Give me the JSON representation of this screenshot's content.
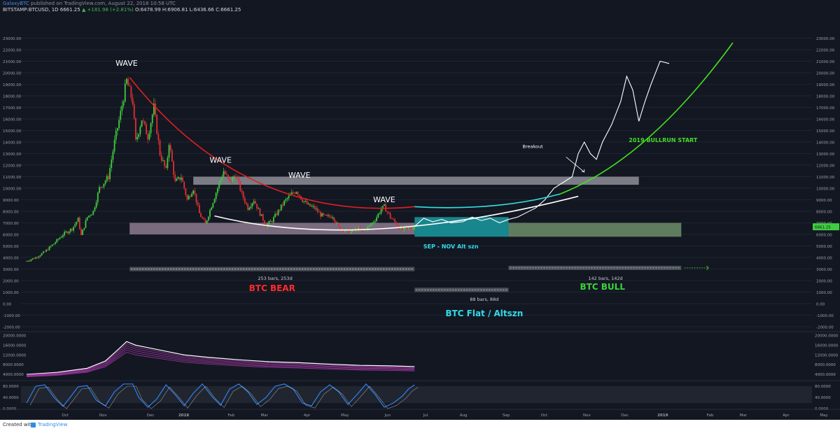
{
  "header": {
    "publisher": "GalaxyBTC",
    "published_text": "published on TradingView.com, August 22, 2018 10:58 UTC",
    "symbol_line": "BITSTAMP:BTCUSD, 1D 6661.25",
    "change_text": "▲ +181.98 (+2.81%)",
    "ohlc_text": "O:6478.99 H:6906.81 L:6436.66 C:6661.25"
  },
  "footer": {
    "created_with": "Created with",
    "brand": "TradingView"
  },
  "colors": {
    "background": "#131722",
    "bull_candle": "#3fcc3f",
    "bear_candle": "#e03030",
    "red_curve": "#e02020",
    "white_curve": "#ffffff",
    "cyan_curve": "#30e0e0",
    "green_curve": "#44dd22",
    "teal_box": "#1a9aa0",
    "green_box": "#6e8e6a",
    "gray_box": "#8e8e96",
    "pink_box": "#8e7a8e",
    "label_red": "#ff2a2a",
    "label_green": "#3bd23b",
    "label_cyan": "#30dbe8"
  },
  "chart_data": {
    "type": "candlestick",
    "xlabels": [
      "Oct",
      "Nov",
      "Dec",
      "2018",
      "Feb",
      "Mar",
      "Apr",
      "May",
      "Jun",
      "Jul",
      "Aug",
      "Sep",
      "Oct",
      "Nov",
      "Dec",
      "2019",
      "Feb",
      "Mar",
      "Apr",
      "May",
      "Jun",
      "Jul"
    ],
    "y_ticks": [
      23000,
      22000,
      21000,
      20000,
      19000,
      18000,
      17000,
      16000,
      15000,
      14000,
      13000,
      12000,
      11000,
      10000,
      9000,
      8000,
      7000,
      6000,
      5000,
      4000,
      3000,
      2000,
      1000,
      0,
      -1000,
      -2000
    ],
    "y_tick_labels": [
      "23000.00",
      "22000.00",
      "21000.00",
      "20000.00",
      "19000.00",
      "18000.00",
      "17000.00",
      "16000.00",
      "15000.00",
      "14000.00",
      "13000.00",
      "12000.00",
      "11000.00",
      "10000.00",
      "9000.00",
      "8000.00",
      "7000.00",
      "6000.00",
      "5000.00",
      "4000.00",
      "3000.00",
      "2000.00",
      "1000.00",
      "0.00",
      "-1000.00",
      "-2000.00"
    ],
    "ylim": [
      -2300,
      24000
    ],
    "last_price_label": "6661.25",
    "price_path": [
      [
        0,
        3700
      ],
      [
        3,
        4000
      ],
      [
        6,
        4500
      ],
      [
        9,
        5200
      ],
      [
        12,
        6000
      ],
      [
        15,
        6500
      ],
      [
        17,
        7300
      ],
      [
        18,
        5900
      ],
      [
        20,
        7500
      ],
      [
        22,
        8000
      ],
      [
        24,
        10000
      ],
      [
        27,
        11000
      ],
      [
        29,
        14000
      ],
      [
        31,
        16500
      ],
      [
        33,
        19300
      ],
      [
        35,
        17500
      ],
      [
        36,
        14000
      ],
      [
        38,
        16000
      ],
      [
        40,
        14500
      ],
      [
        42,
        17000
      ],
      [
        44,
        13000
      ],
      [
        46,
        11500
      ],
      [
        47,
        14000
      ],
      [
        49,
        10500
      ],
      [
        51,
        11000
      ],
      [
        53,
        9000
      ],
      [
        55,
        10000
      ],
      [
        57,
        7800
      ],
      [
        59,
        6900
      ],
      [
        61,
        8500
      ],
      [
        63,
        10000
      ],
      [
        65,
        11500
      ],
      [
        67,
        10500
      ],
      [
        69,
        11200
      ],
      [
        71,
        9500
      ],
      [
        73,
        8300
      ],
      [
        75,
        9000
      ],
      [
        77,
        7800
      ],
      [
        79,
        6800
      ],
      [
        81,
        7200
      ],
      [
        83,
        8000
      ],
      [
        85,
        8800
      ],
      [
        87,
        9400
      ],
      [
        89,
        9800
      ],
      [
        91,
        9000
      ],
      [
        93,
        8500
      ],
      [
        95,
        8300
      ],
      [
        97,
        7700
      ],
      [
        99,
        7500
      ],
      [
        101,
        7600
      ],
      [
        103,
        6600
      ],
      [
        105,
        6400
      ],
      [
        107,
        6200
      ],
      [
        109,
        6500
      ],
      [
        111,
        6300
      ],
      [
        113,
        6700
      ],
      [
        115,
        7300
      ],
      [
        117,
        8200
      ],
      [
        118,
        8400
      ],
      [
        120,
        7500
      ],
      [
        122,
        6900
      ],
      [
        124,
        6400
      ],
      [
        126,
        6500
      ],
      [
        128,
        6661
      ]
    ],
    "projection_path": [
      [
        128,
        6700
      ],
      [
        131,
        7400
      ],
      [
        134,
        7100
      ],
      [
        137,
        7300
      ],
      [
        140,
        7000
      ],
      [
        144,
        7100
      ],
      [
        147,
        7500
      ],
      [
        150,
        7200
      ],
      [
        153,
        7400
      ],
      [
        156,
        7000
      ],
      [
        159,
        7300
      ],
      [
        162,
        7500
      ],
      [
        165,
        7900
      ],
      [
        168,
        8300
      ],
      [
        171,
        9000
      ],
      [
        174,
        10000
      ],
      [
        177,
        10500
      ],
      [
        180,
        11000
      ],
      [
        182,
        13000
      ],
      [
        184,
        14000
      ],
      [
        186,
        13000
      ],
      [
        188,
        12500
      ],
      [
        190,
        14000
      ],
      [
        193,
        15500
      ],
      [
        196,
        17500
      ],
      [
        198,
        19700
      ],
      [
        200,
        18500
      ],
      [
        202,
        15800
      ],
      [
        204,
        17500
      ],
      [
        206,
        19000
      ],
      [
        209,
        21000
      ],
      [
        212,
        20800
      ]
    ],
    "annotations": [
      {
        "id": "wave1",
        "text": "WAVE",
        "bar": 33,
        "price": 20600,
        "color": "#ffffff"
      },
      {
        "id": "wave2",
        "text": "WAVE",
        "bar": 64,
        "price": 12200,
        "color": "#ffffff"
      },
      {
        "id": "wave3",
        "text": "WAVE",
        "bar": 90,
        "price": 10900,
        "color": "#ffffff"
      },
      {
        "id": "wave4",
        "text": "WAVE",
        "bar": 118,
        "price": 8800,
        "color": "#ffffff"
      },
      {
        "id": "sep_nov",
        "text": "SEP - NOV Alt szn",
        "bar": 140,
        "price": 4800,
        "color": "#30dbe8"
      },
      {
        "id": "breakout",
        "text": "Breakout",
        "bar": 167,
        "price": 13500,
        "color": "#ffffff"
      },
      {
        "id": "bullrun",
        "text": "2019 BULLRUN START",
        "bar": 210,
        "price": 14000,
        "color": "#44dd22"
      },
      {
        "id": "bear_range",
        "text": "253 bars, 253d",
        "bar": 82,
        "price": 2050,
        "color": "#cccccc"
      },
      {
        "id": "flat_range",
        "text": "88 bars, 88d",
        "bar": 151,
        "price": 250,
        "color": "#cccccc"
      },
      {
        "id": "bull_range",
        "text": "142 bars, 142d",
        "bar": 191,
        "price": 2050,
        "color": "#cccccc"
      },
      {
        "id": "btc_bear",
        "text": "BTC BEAR",
        "bar": 81,
        "price": 1100,
        "color": "#ff2a2a"
      },
      {
        "id": "btc_flat",
        "text": "BTC Flat / Altszn",
        "bar": 151,
        "price": -1100,
        "color": "#30dbe8"
      },
      {
        "id": "btc_bull",
        "text": "BTC BULL",
        "bar": 190,
        "price": 1200,
        "color": "#3bd23b"
      }
    ],
    "zones": [
      {
        "id": "resistance",
        "from_bar": 55,
        "to_bar": 202,
        "top": 11000,
        "bottom": 10300,
        "color": "#8e8e96"
      },
      {
        "id": "support",
        "from_bar": 34,
        "to_bar": 128,
        "top": 7000,
        "bottom": 6000,
        "color": "#8e7a8e"
      },
      {
        "id": "teal_flat",
        "from_bar": 128,
        "to_bar": 159,
        "top": 7500,
        "bottom": 5800,
        "color": "#1a9aa0"
      },
      {
        "id": "green_flat",
        "from_bar": 159,
        "to_bar": 216,
        "top": 7000,
        "bottom": 5800,
        "color": "#6e8e6a"
      }
    ],
    "date_ranges": [
      {
        "id": "bear",
        "from_bar": 34,
        "to_bar": 128,
        "price": 3000
      },
      {
        "id": "flat",
        "from_bar": 128,
        "to_bar": 159,
        "price": 1200
      },
      {
        "id": "bull",
        "from_bar": 159,
        "to_bar": 216,
        "price": 3100
      }
    ],
    "indicator1": {
      "ticks": [
        20000,
        16000,
        12000,
        8000,
        4000
      ],
      "tick_labels": [
        "20000.0000",
        "16000.0000",
        "12000.0000",
        "8000.0000",
        "4000.0000"
      ],
      "values_bars": [
        [
          0,
          4000
        ],
        [
          10,
          4800
        ],
        [
          20,
          6500
        ],
        [
          26,
          9500
        ],
        [
          30,
          14000
        ],
        [
          33,
          17500
        ],
        [
          36,
          16000
        ],
        [
          40,
          15000
        ],
        [
          46,
          13500
        ],
        [
          52,
          12000
        ],
        [
          60,
          11000
        ],
        [
          70,
          10000
        ],
        [
          80,
          9200
        ],
        [
          90,
          8800
        ],
        [
          100,
          8200
        ],
        [
          110,
          7700
        ],
        [
          120,
          7500
        ],
        [
          128,
          7200
        ]
      ]
    },
    "indicator2": {
      "ticks": [
        80,
        40,
        0
      ],
      "tick_labels": [
        "80.0000",
        "40.0000",
        "0.0000"
      ],
      "values_bars": [
        [
          0,
          20
        ],
        [
          3,
          80
        ],
        [
          6,
          85
        ],
        [
          9,
          40
        ],
        [
          12,
          8
        ],
        [
          14,
          35
        ],
        [
          17,
          78
        ],
        [
          20,
          82
        ],
        [
          23,
          30
        ],
        [
          26,
          10
        ],
        [
          29,
          60
        ],
        [
          32,
          88
        ],
        [
          35,
          88
        ],
        [
          37,
          40
        ],
        [
          40,
          5
        ],
        [
          43,
          35
        ],
        [
          46,
          85
        ],
        [
          49,
          50
        ],
        [
          52,
          10
        ],
        [
          55,
          55
        ],
        [
          58,
          88
        ],
        [
          61,
          45
        ],
        [
          64,
          12
        ],
        [
          67,
          70
        ],
        [
          70,
          88
        ],
        [
          73,
          60
        ],
        [
          76,
          15
        ],
        [
          79,
          40
        ],
        [
          82,
          80
        ],
        [
          85,
          88
        ],
        [
          88,
          70
        ],
        [
          91,
          20
        ],
        [
          94,
          10
        ],
        [
          97,
          60
        ],
        [
          100,
          85
        ],
        [
          103,
          60
        ],
        [
          106,
          15
        ],
        [
          109,
          50
        ],
        [
          112,
          88
        ],
        [
          115,
          50
        ],
        [
          118,
          5
        ],
        [
          121,
          20
        ],
        [
          124,
          45
        ],
        [
          126,
          70
        ],
        [
          128,
          85
        ]
      ]
    }
  }
}
